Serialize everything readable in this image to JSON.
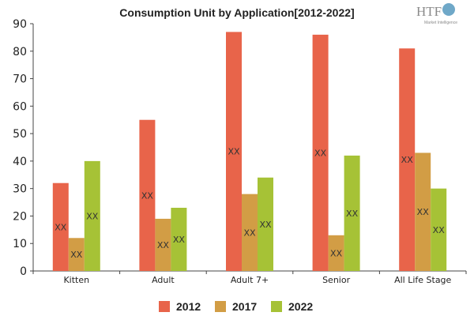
{
  "logo": {
    "text": "HTF",
    "subtext": "Market Intelligence"
  },
  "chart_data": {
    "type": "bar",
    "title": "Consumption Unit by  Application[2012-2022]",
    "xlabel": "",
    "ylabel": "",
    "ylim": [
      0,
      90
    ],
    "yticks": [
      0,
      10,
      20,
      30,
      40,
      50,
      60,
      70,
      80,
      90
    ],
    "categories": [
      "Kitten",
      "Adult",
      "Adult 7+",
      "Senior",
      "All Life Stage"
    ],
    "series": [
      {
        "name": "2012",
        "color": "#e8644a",
        "values": [
          32,
          55,
          87,
          86,
          81
        ],
        "labels": [
          "XX",
          "XX",
          "XX",
          "XX",
          "XX"
        ]
      },
      {
        "name": "2017",
        "color": "#d29d45",
        "values": [
          12,
          19,
          28,
          13,
          43
        ],
        "labels": [
          "XX",
          "XX",
          "XX",
          "XX",
          "XX"
        ]
      },
      {
        "name": "2022",
        "color": "#a6c236",
        "values": [
          40,
          23,
          34,
          42,
          30
        ],
        "labels": [
          "XX",
          "XX",
          "XX",
          "XX",
          "XX"
        ]
      }
    ],
    "grid": false,
    "legend_position": "bottom"
  }
}
